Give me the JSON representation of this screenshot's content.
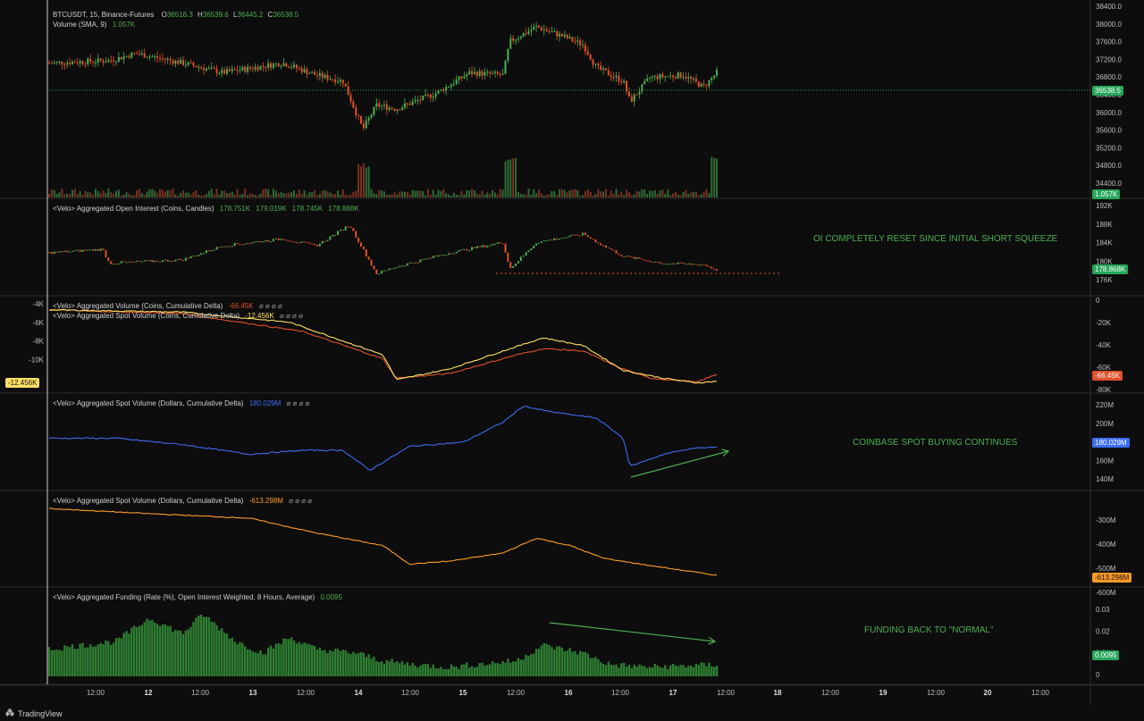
{
  "colors": {
    "background": "#0d0d0d",
    "up": "#26a69a",
    "candle_up": "#4caf50",
    "candle_down": "#e0502a",
    "blue": "#3d6df0",
    "orange": "#ff9a28",
    "yellow": "#ffe066",
    "green_fill": "#2e7d32",
    "annotation": "#4caf50"
  },
  "panes": {
    "price": {
      "title": "BTCUSDT, 15, Binance-Futures",
      "o_label": "O",
      "o": "36516.3",
      "h_label": "H",
      "h": "36539.6",
      "l_label": "L",
      "l": "36445.2",
      "c_label": "C",
      "c": "36538.5",
      "volume_title": "Volume (SMA, 9)",
      "volume_value": "1.057K",
      "axis": [
        "38400.0",
        "38000.0",
        "37600.0",
        "37200.0",
        "36800.0",
        "36400.0",
        "36000.0",
        "35600.0",
        "35200.0",
        "34800.0",
        "34400.0"
      ],
      "last_price_badge": "36538.5",
      "volume_badge": "1.057K"
    },
    "oi": {
      "title": "<Velo> Aggregated Open Interest (Coins, Candles)",
      "v1": "178.751K",
      "v2": "179.019K",
      "v3": "178.745K",
      "v4": "178.868K",
      "axis": [
        "192K",
        "188K",
        "184K",
        "180K",
        "176K"
      ],
      "badge": "178.868K",
      "annotation": "OI COMPLETELY RESET SINCE INITIAL SHORT SQUEEZE"
    },
    "cvd_coins": {
      "title1": "<Velo> Aggregated Volume (Coins, Cumulative Delta)",
      "value1": "-66.45K",
      "title2": "<Velo> Aggregated Spot Volume (Coins, Cumulative Delta)",
      "value2": "-12.456K",
      "axis_right": [
        "0",
        "-20K",
        "-40K",
        "-60K",
        "-80K"
      ],
      "axis_left": [
        "-4K",
        "-6K",
        "-8K",
        "-10K"
      ],
      "badge_right": "-66.45K",
      "badge_left": "-12.456K",
      "markers": "⌀ ⌀ ⌀ ⌀"
    },
    "spot_usd_1": {
      "title": "<Velo> Aggregated Spot Volume (Dollars, Cumulative Delta)",
      "value": "180.029M",
      "axis": [
        "220M",
        "200M",
        "180M",
        "160M",
        "140M"
      ],
      "badge": "180.029M",
      "annotation": "COINBASE SPOT BUYING CONTINUES",
      "markers": "⌀ ⌀ ⌀ ⌀"
    },
    "spot_usd_2": {
      "title": "<Velo> Aggregated Spot Volume (Dollars, Cumulative Delta)",
      "value": "-613.298M",
      "axis": [
        "-300M",
        "-400M",
        "-500M",
        "-600M"
      ],
      "badge": "-613.298M",
      "markers": "⌀ ⌀ ⌀ ⌀"
    },
    "funding": {
      "title": "<Velo> Aggregated Funding (Rate (%), Open Interest Weighted, 8 Hours, Average)",
      "value": "0.0095",
      "axis": [
        "0.03",
        "0.02",
        "0.01",
        "0"
      ],
      "badge": "0.0095",
      "annotation": "FUNDING BACK TO \"NORMAL\""
    }
  },
  "time_axis": [
    "12:00",
    "12",
    "12:00",
    "13",
    "12:00",
    "14",
    "12:00",
    "15",
    "12:00",
    "16",
    "12:00",
    "17",
    "12:00",
    "18",
    "12:00",
    "19",
    "12:00",
    "20",
    "12:00"
  ],
  "footer": {
    "brand": "TradingView"
  }
}
